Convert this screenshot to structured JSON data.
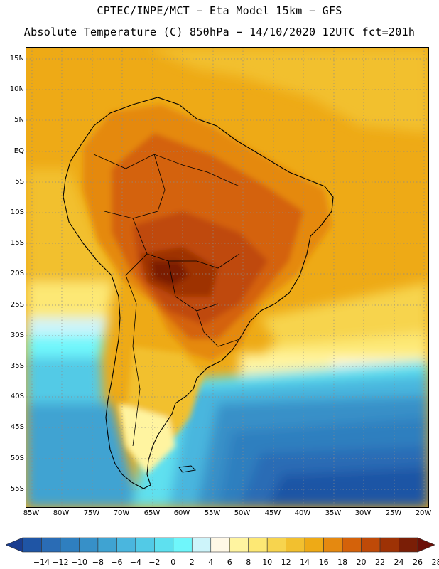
{
  "header": {
    "line1": "CPTEC/INPE/MCT −  Eta Model 15km − GFS",
    "line2": "Absolute Temperature (C) 850hPa − 14/10/2020 12UTC fct=201h"
  },
  "map": {
    "lat_labels": [
      "15N",
      "10N",
      "5N",
      "EQ",
      "5S",
      "10S",
      "15S",
      "20S",
      "25S",
      "30S",
      "35S",
      "40S",
      "45S",
      "50S",
      "55S"
    ],
    "lon_labels": [
      "85W",
      "80W",
      "75W",
      "70W",
      "65W",
      "60W",
      "55W",
      "50W",
      "45W",
      "40W",
      "35W",
      "30W",
      "25W",
      "20W"
    ]
  },
  "colorbar": {
    "labels": [
      "−14",
      "−12",
      "−10",
      "−8",
      "−6",
      "−4",
      "−2",
      "0",
      "2",
      "4",
      "6",
      "8",
      "10",
      "12",
      "14",
      "16",
      "18",
      "20",
      "22",
      "24",
      "26",
      "28"
    ],
    "colors": [
      "#1a3d8f",
      "#1f55a5",
      "#2a6cb5",
      "#2f7fbf",
      "#3790c8",
      "#3fa3d2",
      "#4ab6de",
      "#52cae6",
      "#5ee0ef",
      "#6ff6fb",
      "#cdf4fa",
      "#fff8e6",
      "#fff4a0",
      "#fde874",
      "#f7d44e",
      "#f2c02f",
      "#eeaa16",
      "#e58910",
      "#d4620a",
      "#bf4a08",
      "#9e3205",
      "#7a1e06",
      "#6b1008"
    ]
  }
}
